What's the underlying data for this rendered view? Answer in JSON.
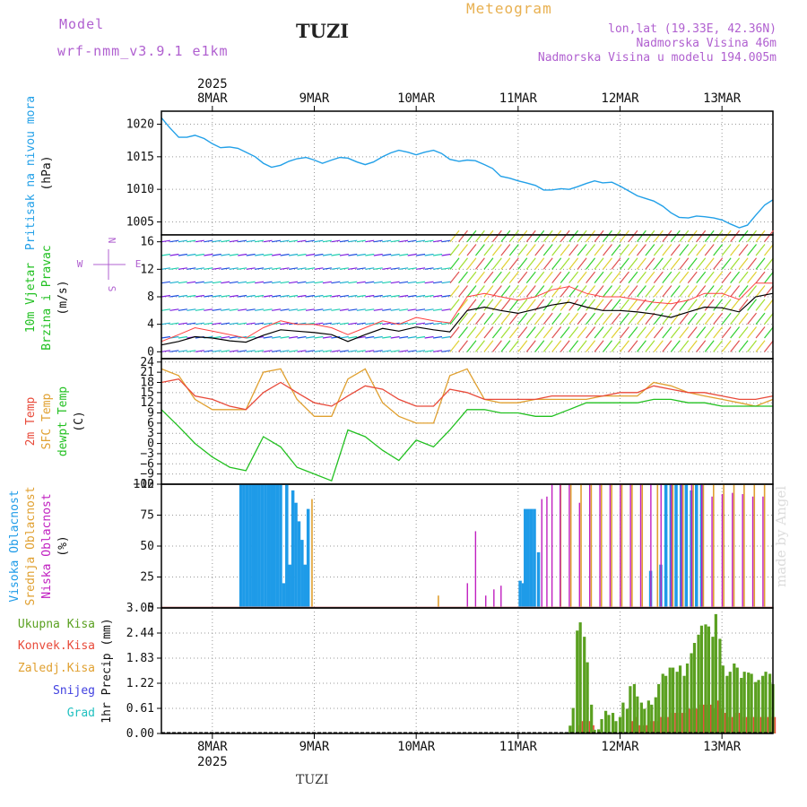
{
  "header": {
    "model_label": "Model",
    "model_name": "wrf-nmm_v3.9.1 e1km",
    "station": "TUZI",
    "title": "Meteogram",
    "coords": "lon,lat (19.33E, 42.36N)",
    "elevation": "Nadmorska Visina 46m",
    "elevation_model": "Nadmorska Visina u modelu 194.005m"
  },
  "footer": {
    "station": "TUZI",
    "credit": "made by Angel"
  },
  "colors": {
    "pressure": "#22a0e8",
    "temp2m": "#e84a3a",
    "sfc": "#e0a030",
    "dewpt": "#22c020",
    "high_cloud": "#1e9be8",
    "mid_cloud": "#e0a030",
    "low_cloud": "#c020c0",
    "total_precip": "#5aa020",
    "conv_precip": "#e84a3a",
    "snow": "#4040e0",
    "hail": "#20c0c0",
    "wind_label": "#20c020",
    "wind_dir": "#b060d0"
  },
  "chart_data": [
    {
      "id": "pressure",
      "type": "line",
      "y_label_lines": [
        "Pritisak na nivou mora",
        "(hPa)"
      ],
      "ylim": [
        1003,
        1022
      ],
      "yticks": [
        1005,
        1010,
        1015,
        1020
      ],
      "x_day_labels": [
        "8MAR",
        "9MAR",
        "10MAR",
        "11MAR",
        "12MAR",
        "13MAR"
      ],
      "x_year": "2025",
      "x_day_offset": [
        0.5,
        1.5,
        2.5,
        3.5,
        4.5,
        5.5
      ],
      "x": [
        0,
        0.08,
        0.17,
        0.25,
        0.33,
        0.42,
        0.5,
        0.58,
        0.67,
        0.75,
        0.83,
        0.92,
        1.0,
        1.08,
        1.17,
        1.25,
        1.33,
        1.42,
        1.5,
        1.58,
        1.67,
        1.75,
        1.83,
        1.92,
        2.0,
        2.08,
        2.17,
        2.25,
        2.33,
        2.42,
        2.5,
        2.58,
        2.67,
        2.75,
        2.83,
        2.92,
        3.0,
        3.08,
        3.17,
        3.25,
        3.33,
        3.42,
        3.5,
        3.58,
        3.67,
        3.75,
        3.83,
        3.92,
        4.0,
        4.08,
        4.17,
        4.25,
        4.33,
        4.42,
        4.5,
        4.58,
        4.67,
        4.75,
        4.83,
        4.92,
        5.0,
        5.08,
        5.17,
        5.25,
        5.33,
        5.42,
        5.5,
        5.58,
        5.67,
        5.75,
        5.83,
        5.92,
        6.0
      ],
      "values": [
        1021,
        1019.5,
        1018,
        1018,
        1018.3,
        1017.8,
        1017,
        1016.4,
        1016.5,
        1016.3,
        1015.7,
        1015,
        1014,
        1013.4,
        1013.7,
        1014.3,
        1014.7,
        1014.9,
        1014.5,
        1014.0,
        1014.5,
        1014.9,
        1014.8,
        1014.2,
        1013.8,
        1014.2,
        1015.0,
        1015.6,
        1016.0,
        1015.7,
        1015.3,
        1015.7,
        1016.0,
        1015.5,
        1014.6,
        1014.3,
        1014.5,
        1014.4,
        1013.8,
        1013.2,
        1012.0,
        1011.7,
        1011.3,
        1011.0,
        1010.6,
        1009.9,
        1009.9,
        1010.1,
        1010.0,
        1010.4,
        1010.9,
        1011.3,
        1011.0,
        1011.1,
        1010.5,
        1009.8,
        1009.0,
        1008.6,
        1008.2,
        1007.4,
        1006.4,
        1005.7,
        1005.6,
        1005.9,
        1005.8,
        1005.6,
        1005.3,
        1004.7,
        1004.1,
        1004.5,
        1006.0,
        1007.6,
        1008.4
      ]
    },
    {
      "id": "wind",
      "type": "line",
      "y_label_lines": [
        "10m Vjetar",
        "Brzina i Pravac",
        "(m/s)"
      ],
      "direction_legend": [
        "N",
        "E",
        "S",
        "W"
      ],
      "ylim": [
        -1,
        17
      ],
      "yticks": [
        0,
        4,
        8,
        12,
        16
      ],
      "x": [
        0,
        0.17,
        0.33,
        0.5,
        0.67,
        0.83,
        1.0,
        1.17,
        1.33,
        1.5,
        1.67,
        1.83,
        2.0,
        2.17,
        2.33,
        2.5,
        2.67,
        2.83,
        3.0,
        3.17,
        3.33,
        3.5,
        3.67,
        3.83,
        4.0,
        4.17,
        4.33,
        4.5,
        4.67,
        4.83,
        5.0,
        5.17,
        5.33,
        5.5,
        5.67,
        5.83,
        6.0
      ],
      "speed": [
        1.0,
        1.5,
        2.2,
        2.0,
        1.6,
        1.4,
        2.4,
        3.2,
        3.0,
        2.8,
        2.5,
        1.5,
        2.5,
        3.4,
        3.0,
        3.6,
        3.2,
        2.9,
        6.0,
        6.5,
        6.0,
        5.6,
        6.2,
        6.8,
        7.2,
        6.5,
        6.0,
        6.0,
        5.8,
        5.5,
        5.0,
        5.8,
        6.5,
        6.4,
        5.8,
        8.0,
        8.5
      ],
      "gust": [
        1.5,
        2.5,
        3.5,
        3.0,
        2.5,
        2.0,
        3.5,
        4.5,
        4.0,
        4.0,
        3.5,
        2.5,
        3.5,
        4.5,
        4.0,
        5.0,
        4.5,
        4.2,
        8.0,
        8.5,
        8.0,
        7.5,
        8.0,
        9.0,
        9.5,
        8.5,
        8.0,
        8.0,
        7.6,
        7.2,
        7.0,
        7.5,
        8.5,
        8.5,
        7.6,
        10.0,
        10.0
      ]
    },
    {
      "id": "temperature",
      "type": "line",
      "y_label_lines": [
        "2m Temp",
        "SFC Temp",
        "dewpt Temp",
        "(C)"
      ],
      "series_names": [
        "2m Temp",
        "SFC Temp",
        "dewpt Temp"
      ],
      "ylim": [
        -12,
        25
      ],
      "yticks": [
        -12,
        -9,
        -6,
        -3,
        0,
        3,
        6,
        9,
        12,
        15,
        18,
        21,
        24
      ],
      "x": [
        0,
        0.17,
        0.33,
        0.5,
        0.67,
        0.83,
        1.0,
        1.17,
        1.33,
        1.5,
        1.67,
        1.83,
        2.0,
        2.17,
        2.33,
        2.5,
        2.67,
        2.83,
        3.0,
        3.17,
        3.33,
        3.5,
        3.67,
        3.83,
        4.0,
        4.17,
        4.33,
        4.5,
        4.67,
        4.83,
        5.0,
        5.17,
        5.33,
        5.5,
        5.67,
        5.83,
        6.0
      ],
      "temp2m": [
        18,
        19,
        14,
        13,
        11,
        10,
        15,
        18,
        15,
        12,
        11,
        14,
        17,
        16,
        13,
        11,
        11,
        16,
        15,
        13,
        13,
        13,
        13,
        14,
        14,
        14,
        14,
        15,
        15,
        17,
        16,
        15,
        15,
        14,
        13,
        13,
        14
      ],
      "sfc": [
        22,
        20,
        13,
        10,
        10,
        10,
        21,
        22,
        13,
        8,
        8,
        19,
        22,
        12,
        8,
        6,
        6,
        20,
        22,
        13,
        12,
        12,
        13,
        13,
        13,
        13,
        14,
        14,
        14,
        18,
        17,
        15,
        14,
        13,
        12,
        11,
        13
      ],
      "dewpt": [
        10,
        5,
        0,
        -4,
        -7,
        -8,
        2,
        -1,
        -7,
        -9,
        -11,
        4,
        2,
        -2,
        -5,
        1,
        -1,
        4,
        10,
        10,
        9,
        9,
        8,
        8,
        10,
        12,
        12,
        12,
        12,
        13,
        13,
        12,
        12,
        11,
        11,
        11,
        11
      ]
    },
    {
      "id": "cloud",
      "type": "bar",
      "y_label_lines": [
        "Visoka Oblacnost",
        "Srednja Oblacnost",
        "Niska Oblacnost",
        "(%)"
      ],
      "series_names": [
        "Visoka Oblacnost",
        "Srednja Oblacnost",
        "Niska Oblacnost"
      ],
      "ylim": [
        0,
        100
      ],
      "yticks": [
        0,
        25,
        50,
        75,
        100
      ],
      "high": [
        [
          0.78,
          100
        ],
        [
          0.81,
          100
        ],
        [
          0.84,
          100
        ],
        [
          0.87,
          100
        ],
        [
          0.9,
          100
        ],
        [
          0.93,
          100
        ],
        [
          0.96,
          100
        ],
        [
          0.99,
          100
        ],
        [
          1.02,
          100
        ],
        [
          1.05,
          100
        ],
        [
          1.08,
          100
        ],
        [
          1.11,
          100
        ],
        [
          1.14,
          100
        ],
        [
          1.17,
          100
        ],
        [
          1.2,
          20
        ],
        [
          1.23,
          100
        ],
        [
          1.26,
          35
        ],
        [
          1.29,
          95
        ],
        [
          1.32,
          85
        ],
        [
          1.35,
          70
        ],
        [
          1.38,
          55
        ],
        [
          1.41,
          35
        ],
        [
          1.44,
          80
        ],
        [
          3.57,
          80
        ],
        [
          3.6,
          80
        ],
        [
          3.63,
          80
        ],
        [
          3.66,
          80
        ],
        [
          3.7,
          45
        ],
        [
          3.55,
          20
        ],
        [
          3.52,
          22
        ],
        [
          4.8,
          30
        ],
        [
          4.9,
          35
        ],
        [
          4.95,
          100
        ],
        [
          5.0,
          100
        ],
        [
          5.05,
          100
        ],
        [
          5.1,
          100
        ],
        [
          5.15,
          100
        ],
        [
          5.2,
          95
        ],
        [
          5.25,
          100
        ],
        [
          5.3,
          100
        ]
      ],
      "mid": [
        [
          1.46,
          88
        ],
        [
          2.7,
          10
        ],
        [
          3.9,
          100
        ],
        [
          4.0,
          100
        ],
        [
          4.1,
          100
        ],
        [
          4.2,
          100
        ],
        [
          4.3,
          100
        ],
        [
          4.4,
          100
        ],
        [
          4.5,
          100
        ],
        [
          4.6,
          100
        ],
        [
          4.7,
          100
        ],
        [
          4.85,
          100
        ],
        [
          5.0,
          100
        ],
        [
          5.1,
          100
        ],
        [
          5.2,
          100
        ],
        [
          5.3,
          100
        ],
        [
          5.4,
          100
        ],
        [
          5.5,
          100
        ],
        [
          5.6,
          100
        ],
        [
          5.7,
          100
        ],
        [
          5.8,
          100
        ],
        [
          5.9,
          100
        ]
      ],
      "low": [
        [
          3.02,
          20
        ],
        [
          3.1,
          62
        ],
        [
          3.2,
          10
        ],
        [
          3.28,
          15
        ],
        [
          3.35,
          18
        ],
        [
          3.75,
          88
        ],
        [
          3.8,
          90
        ],
        [
          3.85,
          100
        ],
        [
          3.93,
          100
        ],
        [
          4.02,
          100
        ],
        [
          4.12,
          85
        ],
        [
          4.22,
          100
        ],
        [
          4.32,
          100
        ],
        [
          4.42,
          100
        ],
        [
          4.52,
          100
        ],
        [
          4.62,
          100
        ],
        [
          4.72,
          100
        ],
        [
          4.82,
          100
        ],
        [
          4.92,
          100
        ],
        [
          5.02,
          100
        ],
        [
          5.12,
          100
        ],
        [
          5.22,
          100
        ],
        [
          5.32,
          100
        ],
        [
          5.42,
          90
        ],
        [
          5.52,
          92
        ],
        [
          5.62,
          93
        ],
        [
          5.72,
          92
        ],
        [
          5.82,
          90
        ],
        [
          5.92,
          90
        ]
      ]
    },
    {
      "id": "precip",
      "type": "bar",
      "y_label_lines": [
        "1hr Precip (mm)"
      ],
      "legend": [
        "Ukupna Kisa",
        "Konvek.Kisa",
        "Zaledj.Kisa",
        "Snijeg",
        "Grad"
      ],
      "ylim": [
        0,
        3.05
      ],
      "yticks": [
        0,
        0.61,
        1.22,
        1.83,
        2.44,
        3.05
      ],
      "x_day_labels": [
        "8MAR",
        "9MAR",
        "10MAR",
        "11MAR",
        "12MAR",
        "13MAR"
      ],
      "x_year": "2025",
      "x_day_offset": [
        0.5,
        1.5,
        2.5,
        3.5,
        4.5,
        5.5
      ],
      "x": [
        3.97,
        4.01,
        4.04,
        4.08,
        4.11,
        4.15,
        4.18,
        4.22,
        4.25,
        4.29,
        4.32,
        4.36,
        4.39,
        4.43,
        4.46,
        4.5,
        4.53,
        4.57,
        4.6,
        4.64,
        4.67,
        4.71,
        4.74,
        4.78,
        4.81,
        4.85,
        4.88,
        4.92,
        4.95,
        4.99,
        5.02,
        5.06,
        5.09,
        5.13,
        5.16,
        5.2,
        5.23,
        5.27,
        5.3,
        5.34,
        5.37,
        5.41,
        5.44,
        5.48,
        5.51,
        5.55,
        5.58,
        5.62,
        5.65,
        5.69,
        5.72,
        5.76,
        5.79,
        5.83,
        5.86,
        5.9,
        5.93,
        5.97,
        6.0
      ],
      "total": [
        0.03,
        0.19,
        0.62,
        2.5,
        2.7,
        2.35,
        1.73,
        0.7,
        0.09,
        0.1,
        0.35,
        0.55,
        0.45,
        0.5,
        0.3,
        0.4,
        0.75,
        0.6,
        1.15,
        1.2,
        0.9,
        0.75,
        0.6,
        0.8,
        0.7,
        0.88,
        1.2,
        1.45,
        1.4,
        1.6,
        1.6,
        1.5,
        1.65,
        1.4,
        1.7,
        1.95,
        2.2,
        2.4,
        2.62,
        2.65,
        2.6,
        2.35,
        2.9,
        2.3,
        1.65,
        1.4,
        1.5,
        1.7,
        1.6,
        1.35,
        1.5,
        1.48,
        1.45,
        1.25,
        1.3,
        1.4,
        1.5,
        1.45,
        1.2
      ],
      "conv": [
        0,
        0,
        0,
        0.2,
        0.3,
        0.3,
        0.3,
        0.2,
        0,
        0,
        0,
        0,
        0,
        0,
        0,
        0,
        0,
        0,
        0.3,
        0.4,
        0.2,
        0.2,
        0.2,
        0.3,
        0.3,
        0.3,
        0.4,
        0.4,
        0.4,
        0.5,
        0.5,
        0.5,
        0.5,
        0.5,
        0.6,
        0.6,
        0.6,
        0.7,
        0.7,
        0.7,
        0.7,
        0.6,
        0.8,
        0.6,
        0.5,
        0.4,
        0.4,
        0.5,
        0.5,
        0.4,
        0.4,
        0.4,
        0.4,
        0.4,
        0.4,
        0.4,
        0.4,
        0.4,
        0.4
      ]
    }
  ]
}
